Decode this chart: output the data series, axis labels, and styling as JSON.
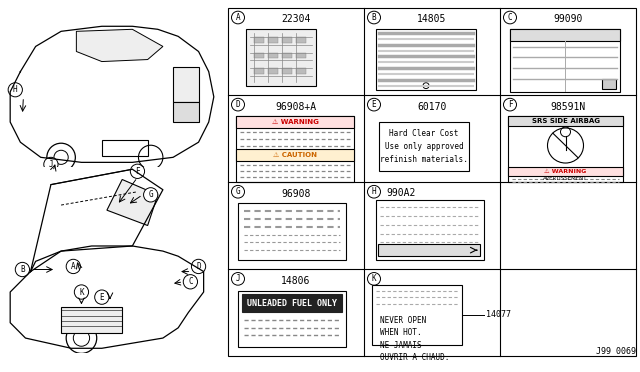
{
  "bg_color": "#ffffff",
  "line_color": "#000000",
  "light_gray": "#cccccc",
  "dark_gray": "#555555",
  "grid_color": "#999999",
  "fig_width": 6.4,
  "fig_height": 3.72,
  "part_number_bottom_right": "J99 0069",
  "labels": {
    "A": "22304",
    "B": "14805",
    "C": "99090",
    "D": "96908+A",
    "E": "60170",
    "F": "98591N",
    "G": "96908",
    "H": "990A2",
    "J": "14806",
    "K": "14077"
  },
  "circle_labels": [
    "A",
    "B",
    "C",
    "D",
    "E",
    "F",
    "G",
    "H",
    "J",
    "K"
  ],
  "warning_text": "⚠ WARNING",
  "caution_text": "⚠ CAUTION",
  "srs_text": "SRS SIDE AIRBAG",
  "e_text": "Hard Clear Cost\nUse only approved\nrefinish materials.",
  "j_text": "UNLEADED FUEL ONLY",
  "k_text": "NEVER OPEN\nWHEN HOT.\nNE JAMAIS\nOUVRIR A CHAUD."
}
